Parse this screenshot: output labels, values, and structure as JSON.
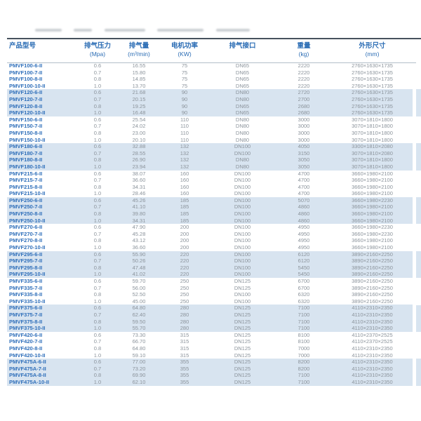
{
  "page": {
    "background": "#ffffff"
  },
  "colors": {
    "accent_blue": "#2a6cb4",
    "model_text": "#2f6fba",
    "data_text": "#8b939b",
    "stripe": "#d8e4f0",
    "top_rule": "#46525d",
    "header_divider": "#b3bfc9"
  },
  "table": {
    "columns": [
      {
        "title": "产品型号",
        "unit": ""
      },
      {
        "title": "排气压力",
        "unit": "(Mpa)"
      },
      {
        "title": "排气量",
        "unit": "(m³/min)"
      },
      {
        "title": "电机功率",
        "unit": "(KW)"
      },
      {
        "title": "排气接口",
        "unit": ""
      },
      {
        "title": "重量",
        "unit": "(kg)"
      },
      {
        "title": "外形尺寸",
        "unit": "(mm)"
      }
    ],
    "stripe_group_size": 4,
    "rows": [
      [
        "PMVF100-6-II",
        "0.6",
        "16.55",
        "75",
        "DN65",
        "2220",
        "2760×1630×1735"
      ],
      [
        "PMVF100-7-II",
        "0.7",
        "15.80",
        "75",
        "DN65",
        "2220",
        "2760×1630×1735"
      ],
      [
        "PMVF100-8-II",
        "0.8",
        "14.85",
        "75",
        "DN65",
        "2220",
        "2760×1630×1735"
      ],
      [
        "PMVF100-10-II",
        "1.0",
        "13.70",
        "75",
        "DN65",
        "2220",
        "2760×1630×1735"
      ],
      [
        "PMVF120-6-II",
        "0.6",
        "21.68",
        "90",
        "DN80",
        "2720",
        "2760×1630×1735"
      ],
      [
        "PMVF120-7-II",
        "0.7",
        "20.15",
        "90",
        "DN80",
        "2700",
        "2760×1630×1735"
      ],
      [
        "PMVF120-8-II",
        "0.8",
        "19.25",
        "90",
        "DN65",
        "2680",
        "2760×1630×1735"
      ],
      [
        "PMVF120-10-II",
        "1.0",
        "16.48",
        "90",
        "DN65",
        "2680",
        "2760×1630×1735"
      ],
      [
        "PMVF150-6-II",
        "0.6",
        "25.54",
        "110",
        "DN80",
        "3000",
        "3070×1810×1800"
      ],
      [
        "PMVF150-7-II",
        "0.7",
        "24.02",
        "110",
        "DN80",
        "3000",
        "3070×1810×1800"
      ],
      [
        "PMVF150-8-II",
        "0.8",
        "23.00",
        "110",
        "DN80",
        "3000",
        "3070×1810×1800"
      ],
      [
        "PMVF150-10-II",
        "1.0",
        "20.10",
        "110",
        "DN80",
        "3000",
        "3070×1810×1800"
      ],
      [
        "PMVF180-6-II",
        "0.6",
        "32.88",
        "132",
        "DN100",
        "4050",
        "3300×1810×2080"
      ],
      [
        "PMVF180-7-II",
        "0.7",
        "28.55",
        "132",
        "DN100",
        "3150",
        "3070×1810×2080"
      ],
      [
        "PMVF180-8-II",
        "0.8",
        "26.90",
        "132",
        "DN80",
        "3050",
        "3070×1810×1800"
      ],
      [
        "PMVF180-10-II",
        "1.0",
        "23.94",
        "132",
        "DN80",
        "3050",
        "3070×1810×1800"
      ],
      [
        "PMVF215-6-II",
        "0.6",
        "38.07",
        "160",
        "DN100",
        "4700",
        "3660×1980×2100"
      ],
      [
        "PMVF215-7-II",
        "0.7",
        "36.60",
        "160",
        "DN100",
        "4700",
        "3660×1980×2100"
      ],
      [
        "PMVF215-8-II",
        "0.8",
        "34.31",
        "160",
        "DN100",
        "4700",
        "3660×1980×2100"
      ],
      [
        "PMVF215-10-II",
        "1.0",
        "28.46",
        "160",
        "DN100",
        "4700",
        "3660×1980×2100"
      ],
      [
        "PMVF250-6-II",
        "0.6",
        "45.26",
        "185",
        "DN100",
        "5070",
        "3660×1980×2230"
      ],
      [
        "PMVF250-7-II",
        "0.7",
        "41.10",
        "185",
        "DN100",
        "4860",
        "3660×1980×2100"
      ],
      [
        "PMVF250-8-II",
        "0.8",
        "39.80",
        "185",
        "DN100",
        "4860",
        "3660×1980×2100"
      ],
      [
        "PMVF250-10-II",
        "1.0",
        "34.31",
        "185",
        "DN100",
        "4860",
        "3660×1980×2100"
      ],
      [
        "PMVF270-6-II",
        "0.6",
        "47.90",
        "200",
        "DN100",
        "4950",
        "3660×1980×2230"
      ],
      [
        "PMVF270-7-II",
        "0.7",
        "45.28",
        "200",
        "DN100",
        "4950",
        "3660×1980×2230"
      ],
      [
        "PMVF270-8-II",
        "0.8",
        "43.12",
        "200",
        "DN100",
        "4950",
        "3660×1980×2100"
      ],
      [
        "PMVF270-10-II",
        "1.0",
        "36.60",
        "200",
        "DN100",
        "4950",
        "3660×1980×2100"
      ],
      [
        "PMVF295-6-II",
        "0.6",
        "55.90",
        "220",
        "DN100",
        "6120",
        "3890×2160×2250"
      ],
      [
        "PMVF295-7-II",
        "0.7",
        "50.26",
        "220",
        "DN100",
        "6120",
        "3890×2160×2250"
      ],
      [
        "PMVF295-8-II",
        "0.8",
        "47.48",
        "220",
        "DN100",
        "5450",
        "3890×2160×2250"
      ],
      [
        "PMVF295-10-II",
        "1.0",
        "41.02",
        "220",
        "DN100",
        "5450",
        "3890×2160×2250"
      ],
      [
        "PMVF335-6-II",
        "0.6",
        "59.70",
        "250",
        "DN125",
        "6700",
        "3890×2160×2250"
      ],
      [
        "PMVF335-7-II",
        "0.7",
        "56.00",
        "250",
        "DN125",
        "6700",
        "3890×2160×2250"
      ],
      [
        "PMVF335-8-II",
        "0.8",
        "52.50",
        "250",
        "DN100",
        "6320",
        "3890×2160×2250"
      ],
      [
        "PMVF335-10-II",
        "1.0",
        "45.00",
        "250",
        "DN100",
        "6320",
        "3890×2160×2250"
      ],
      [
        "PMVF375-6-II",
        "0.6",
        "64.80",
        "280",
        "DN125",
        "7100",
        "4110×2310×2350"
      ],
      [
        "PMVF375-7-II",
        "0.7",
        "62.40",
        "280",
        "DN125",
        "7100",
        "4110×2310×2350"
      ],
      [
        "PMVF375-8-II",
        "0.8",
        "59.50",
        "280",
        "DN125",
        "7100",
        "4110×2310×2350"
      ],
      [
        "PMVF375-10-II",
        "1.0",
        "55.70",
        "280",
        "DN125",
        "7100",
        "4110×2310×2350"
      ],
      [
        "PMVF420-6-II",
        "0.6",
        "73.30",
        "315",
        "DN125",
        "8100",
        "4110×2370×2525"
      ],
      [
        "PMVF420-7-II",
        "0.7",
        "66.70",
        "315",
        "DN125",
        "8100",
        "4110×2370×2525"
      ],
      [
        "PMVF420-8-II",
        "0.8",
        "64.80",
        "315",
        "DN125",
        "7000",
        "4110×2310×2350"
      ],
      [
        "PMVF420-10-II",
        "1.0",
        "59.10",
        "315",
        "DN125",
        "7000",
        "4110×2310×2350"
      ],
      [
        "PMVF475A-6-II",
        "0.6",
        "77.00",
        "355",
        "DN125",
        "8200",
        "4110×2310×2350"
      ],
      [
        "PMVF475A-7-II",
        "0.7",
        "73.20",
        "355",
        "DN125",
        "8200",
        "4110×2310×2350"
      ],
      [
        "PMVF475A-8-II",
        "0.8",
        "69.90",
        "355",
        "DN125",
        "7100",
        "4110×2310×2350"
      ],
      [
        "PMVF475A-10-II",
        "1.0",
        "62.10",
        "355",
        "DN125",
        "7100",
        "4110×2310×2350"
      ]
    ]
  }
}
